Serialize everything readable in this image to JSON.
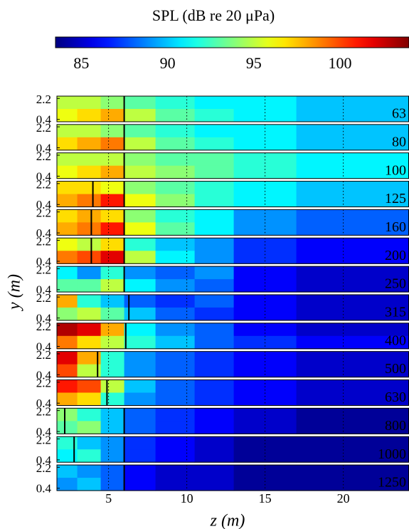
{
  "chart_data": {
    "type": "heatmap",
    "colormap": "jet",
    "colorbar": {
      "title": "SPL (dB re 20 μPa)",
      "lim": [
        83.5,
        104
      ],
      "ticks": [
        85,
        90,
        95,
        100
      ]
    },
    "xlabel": "z (m)",
    "ylabel": "y (m)",
    "xlim": [
      1.7,
      24.2
    ],
    "xticks": [
      5,
      10,
      15,
      20
    ],
    "ylim": [
      0.2,
      2.4
    ],
    "yticks": [
      2.2,
      0.4
    ],
    "bins": [
      1.7,
      3,
      4.5,
      6,
      8,
      10.5,
      13,
      17,
      24.2
    ],
    "panels": [
      {
        "label": "63",
        "values": [
          [
            95,
            95,
            94,
            93,
            92,
            91,
            91,
            90
          ],
          [
            96,
            97,
            98,
            95,
            93,
            92,
            91,
            90
          ]
        ],
        "lines": [
          6
        ]
      },
      {
        "label": "80",
        "values": [
          [
            95,
            95,
            94,
            93,
            92,
            91,
            91,
            90
          ],
          [
            97,
            98,
            99,
            95,
            93,
            92,
            91,
            90
          ]
        ],
        "lines": [
          6
        ]
      },
      {
        "label": "100",
        "values": [
          [
            95,
            95,
            95,
            94,
            93,
            93,
            92,
            91
          ],
          [
            96,
            97,
            98,
            95,
            94,
            93,
            92,
            91
          ]
        ],
        "lines": [
          6
        ]
      },
      {
        "label": "125",
        "values": [
          [
            97,
            97,
            96,
            94,
            93,
            92,
            91,
            90
          ],
          [
            98,
            99,
            101,
            96,
            94,
            92,
            91,
            90
          ]
        ],
        "lines": [
          4,
          6
        ]
      },
      {
        "label": "160",
        "values": [
          [
            97,
            98,
            97,
            94,
            92,
            91,
            89,
            88
          ],
          [
            98,
            99,
            101,
            96,
            93,
            91,
            89,
            88
          ]
        ],
        "lines": [
          3.9,
          6
        ]
      },
      {
        "label": "200",
        "values": [
          [
            96,
            95,
            97,
            92,
            90,
            89,
            87,
            86
          ],
          [
            99,
            100,
            102,
            95,
            91,
            89,
            87,
            86
          ]
        ],
        "lines": [
          3.9,
          6
        ]
      },
      {
        "label": "250",
        "values": [
          [
            91,
            89,
            92,
            89,
            88,
            89,
            86,
            85
          ],
          [
            93,
            93,
            95,
            91,
            89,
            88,
            86,
            85
          ]
        ],
        "lines": [
          6
        ]
      },
      {
        "label": "315",
        "values": [
          [
            98,
            92,
            90,
            88,
            87,
            88,
            86,
            85
          ],
          [
            94,
            95,
            93,
            90,
            88,
            87,
            86,
            85
          ]
        ],
        "lines": [
          6.3
        ]
      },
      {
        "label": "400",
        "values": [
          [
            103,
            102,
            98,
            91,
            89,
            88,
            86,
            85
          ],
          [
            99,
            97,
            95,
            92,
            90,
            88,
            87,
            86
          ]
        ],
        "lines": [
          6.1
        ]
      },
      {
        "label": "500",
        "values": [
          [
            102,
            98,
            92,
            89,
            88,
            87,
            86,
            85
          ],
          [
            100,
            95,
            92,
            89,
            88,
            87,
            86,
            85
          ]
        ],
        "lines": [
          4.3
        ]
      },
      {
        "label": "630",
        "values": [
          [
            101,
            100,
            95,
            90,
            88,
            87,
            86,
            85
          ],
          [
            98,
            97,
            92,
            89,
            88,
            87,
            86,
            85
          ]
        ],
        "lines": [
          4.9
        ]
      },
      {
        "label": "800",
        "values": [
          [
            94,
            92,
            90,
            88,
            87,
            86,
            85,
            84
          ],
          [
            93,
            94,
            90,
            88,
            87,
            86,
            85,
            84
          ]
        ],
        "lines": [
          2.2,
          6
        ]
      },
      {
        "label": "1000",
        "values": [
          [
            92,
            90,
            89,
            87,
            86,
            85,
            84,
            84
          ],
          [
            91,
            92,
            89,
            87,
            86,
            85,
            84,
            84
          ]
        ],
        "lines": [
          2.8,
          6
        ]
      },
      {
        "label": "1250",
        "values": [
          [
            90,
            89,
            88,
            86,
            85,
            85,
            84,
            84
          ],
          [
            89,
            90,
            88,
            86,
            85,
            85,
            84,
            84
          ]
        ],
        "lines": [
          6
        ]
      }
    ]
  }
}
